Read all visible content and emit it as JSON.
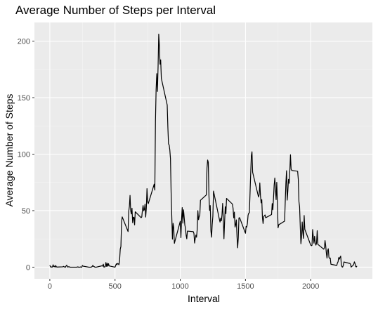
{
  "chart_data": {
    "type": "line",
    "title": "Average Number of Steps per Interval",
    "xlabel": "Interval",
    "ylabel": "Average Number of Steps",
    "color": "#000000",
    "grid": true,
    "xlim": [
      -118,
      2473
    ],
    "ylim": [
      -10.3,
      216.5
    ],
    "xticks": [
      0,
      500,
      1000,
      1500,
      2000
    ],
    "yticks": [
      0,
      50,
      100,
      150,
      200
    ],
    "x": [
      0,
      5,
      10,
      15,
      20,
      25,
      30,
      35,
      40,
      45,
      50,
      55,
      100,
      105,
      110,
      115,
      120,
      125,
      130,
      135,
      140,
      145,
      150,
      155,
      200,
      205,
      210,
      215,
      220,
      225,
      230,
      235,
      240,
      245,
      250,
      255,
      300,
      305,
      310,
      315,
      320,
      325,
      330,
      335,
      340,
      345,
      350,
      355,
      400,
      405,
      410,
      415,
      420,
      425,
      430,
      435,
      440,
      445,
      450,
      455,
      500,
      505,
      510,
      515,
      520,
      525,
      530,
      535,
      540,
      545,
      550,
      555,
      600,
      605,
      610,
      615,
      620,
      625,
      630,
      635,
      640,
      645,
      650,
      655,
      700,
      705,
      710,
      715,
      720,
      725,
      730,
      735,
      740,
      745,
      750,
      755,
      800,
      805,
      810,
      815,
      820,
      825,
      830,
      835,
      840,
      845,
      850,
      855,
      900,
      905,
      910,
      915,
      920,
      925,
      930,
      935,
      940,
      945,
      950,
      955,
      1000,
      1005,
      1010,
      1015,
      1020,
      1025,
      1030,
      1035,
      1040,
      1045,
      1050,
      1055,
      1100,
      1105,
      1110,
      1115,
      1120,
      1125,
      1130,
      1135,
      1140,
      1145,
      1150,
      1155,
      1200,
      1205,
      1210,
      1215,
      1220,
      1225,
      1230,
      1235,
      1240,
      1245,
      1250,
      1255,
      1300,
      1305,
      1310,
      1315,
      1320,
      1325,
      1330,
      1335,
      1340,
      1345,
      1350,
      1355,
      1400,
      1405,
      1410,
      1415,
      1420,
      1425,
      1430,
      1435,
      1440,
      1445,
      1450,
      1455,
      1500,
      1505,
      1510,
      1515,
      1520,
      1525,
      1530,
      1535,
      1540,
      1545,
      1550,
      1555,
      1600,
      1605,
      1610,
      1615,
      1620,
      1625,
      1630,
      1635,
      1640,
      1645,
      1650,
      1655,
      1700,
      1705,
      1710,
      1715,
      1720,
      1725,
      1730,
      1735,
      1740,
      1745,
      1750,
      1755,
      1800,
      1805,
      1810,
      1815,
      1820,
      1825,
      1830,
      1835,
      1840,
      1845,
      1850,
      1855,
      1900,
      1905,
      1910,
      1915,
      1920,
      1925,
      1930,
      1935,
      1940,
      1945,
      1950,
      1955,
      2000,
      2005,
      2010,
      2015,
      2020,
      2025,
      2030,
      2035,
      2040,
      2045,
      2050,
      2055,
      2100,
      2105,
      2110,
      2115,
      2120,
      2125,
      2130,
      2135,
      2140,
      2145,
      2150,
      2155,
      2200,
      2205,
      2210,
      2215,
      2220,
      2225,
      2230,
      2235,
      2240,
      2245,
      2250,
      2255,
      2300,
      2305,
      2310,
      2315,
      2320,
      2325,
      2330,
      2335,
      2340,
      2345,
      2350,
      2355
    ],
    "values": [
      1.7,
      0.3,
      0.1,
      0.2,
      0.1,
      2.1,
      0.5,
      0.9,
      0,
      1.5,
      0.3,
      0.1,
      0.3,
      0.7,
      0.2,
      0.3,
      0,
      1.1,
      1.8,
      0.2,
      0.2,
      0.4,
      0.3,
      0,
      0,
      0,
      0.1,
      0.3,
      0,
      0,
      0,
      0.2,
      0,
      0,
      1.5,
      0.9,
      0,
      0,
      0,
      0,
      0.2,
      0.6,
      1.6,
      0.6,
      0.5,
      0.1,
      0,
      0,
      1.2,
      0.9,
      2.6,
      0,
      0.3,
      0.4,
      4.1,
      0.7,
      3.5,
      0.8,
      3.1,
      1.1,
      0,
      1.5,
      3.0,
      2.2,
      3.3,
      3.0,
      2.1,
      6.1,
      16.0,
      18.3,
      39.5,
      44.5,
      31.5,
      49.3,
      53.8,
      63.5,
      50.0,
      47.1,
      52.2,
      39.3,
      44.0,
      44.2,
      37.4,
      49.0,
      43.8,
      44.4,
      50.5,
      54.5,
      49.9,
      51.0,
      55.7,
      44.3,
      52.3,
      69.5,
      57.8,
      56.2,
      73.4,
      68.2,
      129.4,
      157.5,
      171.2,
      155.4,
      177.3,
      206.2,
      195.9,
      179.6,
      183.4,
      167.0,
      143.5,
      124.0,
      109.1,
      108.1,
      103.7,
      96.0,
      66.2,
      45.2,
      24.8,
      38.8,
      35.0,
      21.1,
      40.6,
      26.1,
      42.4,
      52.7,
      38.9,
      50.8,
      44.3,
      37.4,
      34.7,
      28.3,
      25.1,
      31.9,
      31.4,
      29.7,
      21.3,
      25.5,
      28.4,
      26.5,
      33.4,
      50.0,
      42.0,
      44.6,
      46.0,
      59.2,
      63.9,
      87.7,
      94.8,
      92.8,
      63.4,
      50.2,
      54.5,
      32.4,
      26.5,
      37.7,
      45.1,
      67.3,
      42.3,
      39.9,
      43.3,
      41.0,
      46.2,
      56.4,
      42.8,
      25.1,
      40.0,
      53.5,
      47.3,
      60.8,
      55.8,
      52.0,
      43.6,
      48.7,
      35.5,
      37.5,
      41.8,
      27.5,
      17.1,
      26.1,
      43.6,
      43.8,
      30.0,
      36.1,
      35.5,
      38.8,
      46.0,
      47.8,
      48.1,
      65.3,
      82.9,
      98.7,
      102.1,
      84.0,
      62.1,
      64.1,
      74.5,
      63.2,
      56.9,
      59.8,
      43.9,
      38.6,
      44.7,
      45.5,
      46.2,
      43.7,
      46.6,
      56.3,
      50.7,
      61.2,
      72.7,
      78.9,
      68.9,
      59.7,
      75.1,
      56.5,
      34.8,
      37.5,
      40.7,
      58.0,
      74.7,
      85.3,
      59.3,
      67.8,
      77.7,
      74.2,
      85.3,
      99.5,
      86.6,
      85.6,
      84.9,
      77.8,
      58.0,
      53.4,
      36.3,
      20.7,
      27.4,
      40.0,
      30.2,
      25.5,
      45.7,
      33.5,
      19.6,
      19.0,
      19.3,
      33.3,
      26.8,
      21.2,
      27.3,
      21.3,
      19.5,
      21.3,
      32.3,
      20.2,
      15.9,
      17.2,
      23.5,
      19.2,
      12.5,
      8.0,
      14.7,
      16.3,
      8.7,
      7.8,
      8.1,
      2.6,
      1.5,
      3.7,
      4.8,
      8.5,
      7.1,
      8.7,
      9.8,
      2.2,
      0.3,
      0.1,
      1.6,
      4.6,
      3.3,
      2.8,
      0,
      0.8,
      1.0,
      1.6,
      2.6,
      4.7,
      3.3,
      0.6,
      0.2,
      1.1
    ]
  }
}
